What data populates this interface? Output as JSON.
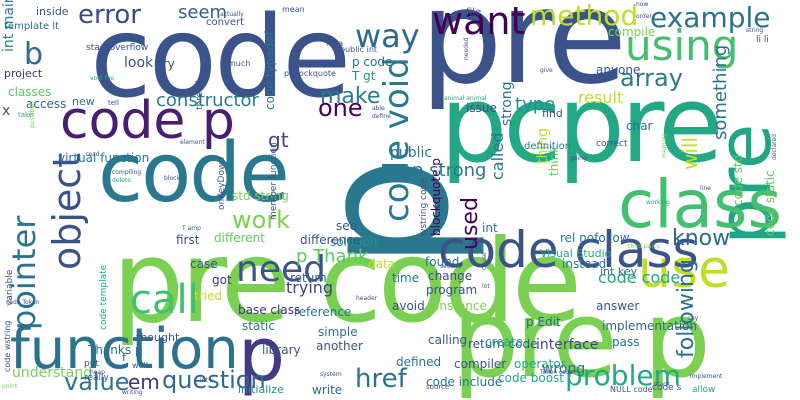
{
  "words": [
    {
      "text": "code",
      "color": "#3b528b"
    },
    {
      "text": "pre",
      "color": "#3b528b"
    },
    {
      "text": "p",
      "color": "#2a788e"
    },
    {
      "text": "pre",
      "color": "#21a685"
    },
    {
      "text": "pcpre",
      "color": "#22a884"
    },
    {
      "text": "code",
      "color": "#2a788e"
    },
    {
      "text": "pre code",
      "color": "#7ad151"
    },
    {
      "text": "pre p",
      "color": "#7ad151"
    },
    {
      "text": "p",
      "color": "#443983"
    },
    {
      "text": "code p",
      "color": "#481f70"
    },
    {
      "text": "function",
      "color": "#2c728e"
    },
    {
      "text": "class",
      "color": "#44bf70"
    },
    {
      "text": "use",
      "color": "#bddf26"
    },
    {
      "text": "code class",
      "color": "#3b528b"
    },
    {
      "text": "code void",
      "color": "#2a788e"
    },
    {
      "text": "using",
      "color": "#44bf70"
    },
    {
      "text": "example",
      "color": "#2c728e"
    },
    {
      "text": "want",
      "color": "#440154"
    },
    {
      "text": "method",
      "color": "#bddf26"
    },
    {
      "text": "array",
      "color": "#2a788e"
    },
    {
      "text": "way",
      "color": "#31688e"
    },
    {
      "text": "make",
      "color": "#287c8e"
    },
    {
      "text": "error",
      "color": "#3e4989"
    },
    {
      "text": "seem",
      "color": "#355f8d"
    },
    {
      "text": "code typedef",
      "color": "#2a788e"
    },
    {
      "text": "pointer",
      "color": "#2c728e"
    },
    {
      "text": "object",
      "color": "#3b528b"
    },
    {
      "text": "call",
      "color": "#44bf70"
    },
    {
      "text": "need",
      "color": "#3b528b"
    },
    {
      "text": "value",
      "color": "#2a788e"
    },
    {
      "text": "question",
      "color": "#31688e"
    },
    {
      "text": "em",
      "color": "#46327e"
    },
    {
      "text": "href",
      "color": "#2c728e"
    },
    {
      "text": "problem",
      "color": "#22a884"
    },
    {
      "text": "following",
      "color": "#2c728e"
    },
    {
      "text": "know",
      "color": "#31688e"
    },
    {
      "text": "work",
      "color": "#7ad151"
    },
    {
      "text": "p strong",
      "color": "#2a788e"
    },
    {
      "text": "p Thank",
      "color": "#5ec962"
    },
    {
      "text": "constructor",
      "color": "#287c8e"
    },
    {
      "text": "one",
      "color": "#440154"
    },
    {
      "text": "gt",
      "color": "#414487"
    },
    {
      "text": "type",
      "color": "#21918c"
    },
    {
      "text": "result",
      "color": "#bddf26"
    },
    {
      "text": "code code",
      "color": "#22a884"
    },
    {
      "text": "used",
      "color": "#440154"
    },
    {
      "text": "called",
      "color": "#2a788e"
    },
    {
      "text": "will",
      "color": "#bddf26"
    },
    {
      "text": "something",
      "color": "#2c728e"
    },
    {
      "text": "b",
      "color": "#31688e"
    },
    {
      "text": "int main",
      "color": "#287c8e"
    },
    {
      "text": "look",
      "color": "#3b528b"
    },
    {
      "text": "trying",
      "color": "#414487"
    },
    {
      "text": "reference",
      "color": "#2c728e"
    },
    {
      "text": "Thanks p",
      "color": "#2c728e"
    },
    {
      "text": "library",
      "color": "#3b528b"
    },
    {
      "text": "base class",
      "color": "#46327e"
    },
    {
      "text": "return code",
      "color": "#3b528b"
    },
    {
      "text": "p Edit",
      "color": "#31688e"
    },
    {
      "text": "interface",
      "color": "#3e4989"
    },
    {
      "text": "create",
      "color": "#22a884"
    },
    {
      "text": "code include",
      "color": "#2c728e"
    },
    {
      "text": "code boost",
      "color": "#22a884"
    },
    {
      "text": "compiler",
      "color": "#3b528b"
    },
    {
      "text": "operator",
      "color": "#22a884"
    },
    {
      "text": "wrong",
      "color": "#2c728e"
    },
    {
      "text": "understand",
      "color": "#7ad151"
    },
    {
      "text": "initialize",
      "color": "#21918c"
    },
    {
      "text": "write",
      "color": "#31688e"
    },
    {
      "text": "implementation",
      "color": "#31688e"
    },
    {
      "text": "answer",
      "color": "#3b528b"
    },
    {
      "text": "program",
      "color": "#3b528b"
    },
    {
      "text": "instance",
      "color": "#7ad151"
    },
    {
      "text": "change",
      "color": "#3e4989"
    },
    {
      "text": "found",
      "color": "#2c728e"
    },
    {
      "text": "int",
      "color": "#2c728e"
    },
    {
      "text": "see",
      "color": "#3b528b"
    },
    {
      "text": "solution",
      "color": "#21918c"
    },
    {
      "text": "rel nofollow",
      "color": "#2c728e"
    },
    {
      "text": "instead",
      "color": "#2c728e"
    },
    {
      "text": "think",
      "color": "#5ec962"
    },
    {
      "text": "thing",
      "color": "#bddf26"
    },
    {
      "text": "definition",
      "color": "#287c8e"
    },
    {
      "text": "public",
      "color": "#2c728e"
    },
    {
      "text": "strong",
      "color": "#2c728e"
    },
    {
      "text": "issue",
      "color": "#3b528b"
    },
    {
      "text": "T gt",
      "color": "#21918c"
    },
    {
      "text": "p code",
      "color": "#2c728e"
    },
    {
      "text": "std string",
      "color": "#7ad151"
    },
    {
      "text": "virtual function",
      "color": "#2c728e"
    },
    {
      "text": "access",
      "color": "#31688e"
    },
    {
      "text": "classes",
      "color": "#5ec962"
    },
    {
      "text": "project",
      "color": "#46327e"
    },
    {
      "text": "new",
      "color": "#2c728e"
    },
    {
      "text": "try",
      "color": "#3b528b"
    },
    {
      "text": "first",
      "color": "#3b528b"
    },
    {
      "text": "different",
      "color": "#5ec962"
    },
    {
      "text": "case",
      "color": "#3b528b"
    },
    {
      "text": "got",
      "color": "#46327e"
    },
    {
      "text": "tried",
      "color": "#bddf26"
    },
    {
      "text": "thought",
      "color": "#3b528b"
    },
    {
      "text": "return",
      "color": "#31688e"
    },
    {
      "text": "difference",
      "color": "#3b528b"
    },
    {
      "text": "data",
      "color": "#bddf26"
    },
    {
      "text": "time",
      "color": "#2c728e"
    },
    {
      "text": "avoid",
      "color": "#3b528b"
    },
    {
      "text": "static",
      "color": "#2c728e"
    },
    {
      "text": "simple",
      "color": "#2c728e"
    },
    {
      "text": "another",
      "color": "#3b528b"
    },
    {
      "text": "defined",
      "color": "#2c728e"
    },
    {
      "text": "calling",
      "color": "#3b528b"
    },
    {
      "text": "pass",
      "color": "#2c728e"
    },
    {
      "text": "blockquote p",
      "color": "#440154"
    },
    {
      "text": "Visual Studio",
      "color": "#22a884"
    },
    {
      "text": "code std",
      "color": "#5ec962"
    },
    {
      "text": "code static",
      "color": "#5ec962"
    },
    {
      "text": "int key",
      "color": "#2c728e"
    },
    {
      "text": "char",
      "color": "#2c728e"
    },
    {
      "text": "find",
      "color": "#3b528b"
    },
    {
      "text": "anyone",
      "color": "#3b528b"
    },
    {
      "text": "compile",
      "color": "#7ad151"
    },
    {
      "text": "inside",
      "color": "#3b528b"
    },
    {
      "text": "mean",
      "color": "#3b528b"
    },
    {
      "text": "file",
      "color": "#3b528b"
    },
    {
      "text": "idea",
      "color": "#3b528b"
    },
    {
      "text": "convert",
      "color": "#3b528b"
    },
    {
      "text": "template lt",
      "color": "#2c728e"
    },
    {
      "text": "stackoverflow",
      "color": "#3b528b"
    },
    {
      "text": "much",
      "color": "#3b528b"
    },
    {
      "text": "public int",
      "color": "#3b528b"
    },
    {
      "text": "p blockquote",
      "color": "#3b528b"
    },
    {
      "text": "thread",
      "color": "#3b528b"
    },
    {
      "text": "now",
      "color": "#3b528b"
    },
    {
      "text": "order",
      "color": "#3b528b"
    },
    {
      "text": "li li",
      "color": "#3b528b"
    },
    {
      "text": "string",
      "color": "#3b528b"
    },
    {
      "text": "x",
      "color": "#3b528b"
    },
    {
      "text": "tell",
      "color": "#3b528b"
    },
    {
      "text": "take",
      "color": "#22a884"
    },
    {
      "text": "read",
      "color": "#3b528b"
    },
    {
      "text": "possible",
      "color": "#7ad151"
    },
    {
      "text": "element",
      "color": "#3b528b"
    },
    {
      "text": "compiling",
      "color": "#3b528b"
    },
    {
      "text": "delete",
      "color": "#22a884"
    },
    {
      "text": "block",
      "color": "#3b528b"
    },
    {
      "text": "onKeyDown",
      "color": "#3b528b"
    },
    {
      "text": "member function",
      "color": "#3b528b"
    },
    {
      "text": "wstring code",
      "color": "#3b528b"
    },
    {
      "text": "able",
      "color": "#3b528b"
    },
    {
      "text": "define",
      "color": "#3b528b"
    },
    {
      "text": "animal animal",
      "color": "#22a884"
    },
    {
      "text": "correct",
      "color": "#3b528b"
    },
    {
      "text": "declared",
      "color": "#3b528b"
    },
    {
      "text": "memory",
      "color": "#7ad151"
    },
    {
      "text": "line",
      "color": "#3b528b"
    },
    {
      "text": "working",
      "color": "#22a884"
    },
    {
      "text": "going",
      "color": "#3b528b"
    },
    {
      "text": "third party",
      "color": "#7ad151"
    },
    {
      "text": "header",
      "color": "#3b528b"
    },
    {
      "text": "second",
      "color": "#3b528b"
    },
    {
      "text": "lot",
      "color": "#3b528b"
    },
    {
      "text": "cause",
      "color": "#3b528b"
    },
    {
      "text": "say",
      "color": "#3b528b"
    },
    {
      "text": "implement",
      "color": "#3b528b"
    },
    {
      "text": "Token code",
      "color": "#3b528b"
    },
    {
      "text": "NULL code",
      "color": "#3b528b"
    },
    {
      "text": "code s",
      "color": "#3b528b"
    },
    {
      "text": "allow",
      "color": "#22a884"
    },
    {
      "text": "stack",
      "color": "#3b528b"
    },
    {
      "text": "source",
      "color": "#3b528b"
    },
    {
      "text": "code wstring",
      "color": "#3b528b"
    },
    {
      "text": "variable",
      "color": "#3b528b"
    },
    {
      "text": "code template",
      "color": "#22a884"
    },
    {
      "text": "put",
      "color": "#3b528b"
    },
    {
      "text": "really",
      "color": "#3b528b"
    },
    {
      "text": "point",
      "color": "#7ad151"
    },
    {
      "text": "writing",
      "color": "#3b528b"
    },
    {
      "text": "heap",
      "color": "#3b528b"
    },
    {
      "text": "well",
      "color": "#3b528b"
    },
    {
      "text": "int x",
      "color": "#3b528b"
    },
    {
      "text": "f",
      "color": "#3b528b"
    },
    {
      "text": "T amp",
      "color": "#3b528b"
    },
    {
      "text": "actually",
      "color": "#3b528b"
    },
    {
      "text": "void foo",
      "color": "#22a884"
    },
    {
      "text": "code Token",
      "color": "#3b528b"
    },
    {
      "text": "give",
      "color": "#3b528b"
    },
    {
      "text": "needed",
      "color": "#3b528b"
    },
    {
      "text": "system",
      "color": "#3b528b"
    }
  ]
}
